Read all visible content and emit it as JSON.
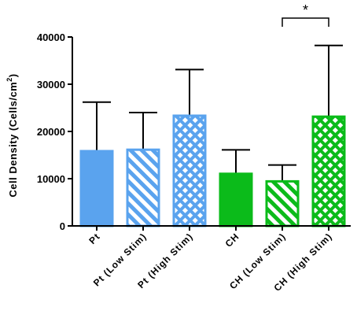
{
  "chart_data": {
    "type": "bar",
    "ylabel_main": "Cell Density (Cells/cm",
    "ylabel_sup": "2",
    "ylabel_close": ")",
    "ylim": [
      0,
      40000
    ],
    "yticks": [
      0,
      10000,
      20000,
      30000,
      40000
    ],
    "categories": [
      "Pt",
      "Pt (Low Stim)",
      "Pt (High Stim)",
      "CH",
      "CH (Low Stim)",
      "CH (High Stim)"
    ],
    "values": [
      16000,
      16300,
      23500,
      11200,
      9600,
      23300
    ],
    "errors": [
      10200,
      7700,
      9600,
      4900,
      3300,
      14900
    ],
    "fill_patterns": [
      "solid",
      "diagonal",
      "checker",
      "solid",
      "diagonal",
      "checker"
    ],
    "colors": [
      "#5aa3ee",
      "#5aa3ee",
      "#5aa3ee",
      "#0bbb1a",
      "#0bbb1a",
      "#0bbb1a"
    ],
    "significance": [
      {
        "from": 4,
        "to": 5,
        "label": "*"
      }
    ],
    "grid": false,
    "legend": "none"
  }
}
